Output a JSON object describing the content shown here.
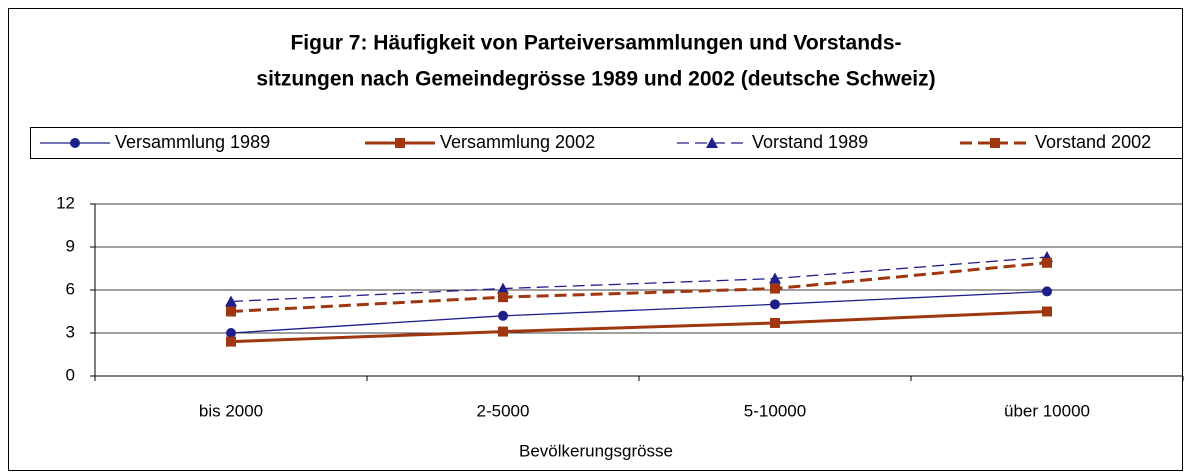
{
  "chart_data": {
    "type": "line",
    "title": [
      "Figur 7: Häufigkeit von Parteiversammlungen und Vorstands-",
      "sitzungen nach Gemeindegrösse 1989 und 2002  (deutsche Schweiz)"
    ],
    "x_label": "Bevölkerungsgrösse",
    "categories": [
      "bis 2000",
      "2-5000",
      "5-10000",
      "über 10000"
    ],
    "series": [
      {
        "name": "Versammlung 1989",
        "color": "#1f1f8c",
        "dashed": false,
        "width": 1.3,
        "marker": "circle",
        "values": [
          3.0,
          4.2,
          5.0,
          5.9
        ]
      },
      {
        "name": "Versammlung 2002",
        "color": "#a0360f",
        "dashed": false,
        "width": 3,
        "marker": "square",
        "values": [
          2.4,
          3.1,
          3.7,
          4.5
        ]
      },
      {
        "name": "Vorstand 1989",
        "color": "#1f1f8c",
        "dashed": true,
        "width": 1.3,
        "marker": "triangle",
        "values": [
          5.2,
          6.1,
          6.8,
          8.3
        ]
      },
      {
        "name": "Vorstand 2002",
        "color": "#a0360f",
        "dashed": true,
        "width": 3,
        "marker": "square",
        "values": [
          4.5,
          5.5,
          6.1,
          7.9
        ]
      }
    ],
    "ylim": [
      0,
      12
    ],
    "yticks": [
      0,
      3,
      6,
      9,
      12
    ],
    "grid": true,
    "legend": "top"
  }
}
